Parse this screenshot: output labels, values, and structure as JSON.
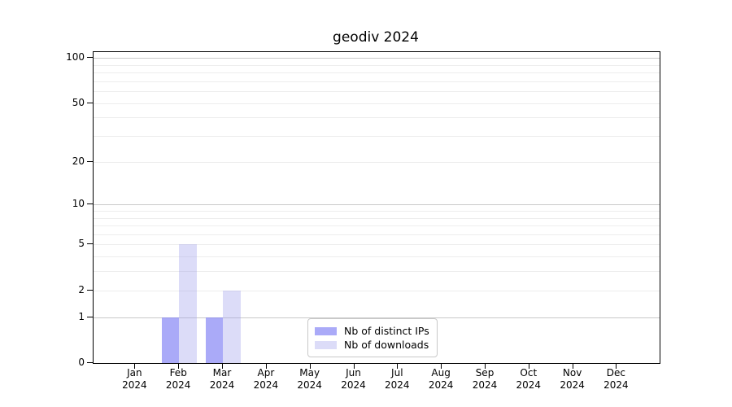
{
  "chart_data": {
    "type": "bar",
    "title": "geodiv 2024",
    "categories": [
      "Jan 2024",
      "Feb 2024",
      "Mar 2024",
      "Apr 2024",
      "May 2024",
      "Jun 2024",
      "Jul 2024",
      "Aug 2024",
      "Sep 2024",
      "Oct 2024",
      "Nov 2024",
      "Dec 2024"
    ],
    "series": [
      {
        "name": "Nb of distinct IPs",
        "color": "#aaaaf8",
        "fill": "rgba(125,125,245,0.65)",
        "values": [
          0,
          1,
          1,
          0,
          0,
          0,
          0,
          0,
          0,
          0,
          0,
          0
        ]
      },
      {
        "name": "Nb of downloads",
        "color": "#dcdcf8",
        "fill": "rgba(155,155,235,0.35)",
        "values": [
          0,
          5,
          2,
          0,
          0,
          0,
          0,
          0,
          0,
          0,
          0,
          0
        ]
      }
    ],
    "xlabel": "",
    "ylabel": "",
    "yscale": "log1p",
    "ylim": [
      0,
      109
    ],
    "yticks": [
      0,
      1,
      2,
      5,
      10,
      20,
      50,
      100
    ],
    "gridlines": {
      "major": [
        1,
        10,
        100
      ],
      "minor": [
        2,
        3,
        4,
        5,
        6,
        7,
        8,
        9,
        20,
        30,
        40,
        50,
        60,
        70,
        80,
        90
      ]
    },
    "grid": true,
    "legend_position": "lower center"
  },
  "legend": {
    "items": [
      {
        "label": "Nb of distinct IPs",
        "color": "#aaaaf8"
      },
      {
        "label": "Nb of downloads",
        "color": "#dcdcf8"
      }
    ]
  },
  "colors": {
    "background": "#ffffff",
    "axis": "#000000",
    "grid_major": "#c9c9c9",
    "grid_minor": "#ededed",
    "legend_border": "#c9c9c9"
  }
}
